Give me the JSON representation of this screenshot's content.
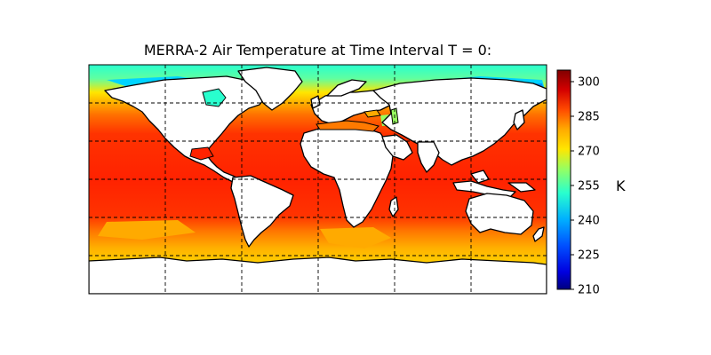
{
  "title": "MERRA-2 Air Temperature at Time Interval T = 0:",
  "colorbar": {
    "unit_label": "K",
    "min": 210,
    "max": 305,
    "ticks": [
      210,
      225,
      240,
      255,
      270,
      285,
      300
    ],
    "colors": [
      "#00007f",
      "#0000c4",
      "#0010ff",
      "#0050ff",
      "#0090ff",
      "#00d4ff",
      "#29ffce",
      "#60ff97",
      "#97ff60",
      "#ceff29",
      "#ffe600",
      "#ffaa00",
      "#ff6f00",
      "#ff3300",
      "#e60000",
      "#b40000",
      "#800000"
    ]
  },
  "map": {
    "projection": "PlateCarree",
    "gridlines": "dashed",
    "lon_range": [
      -180,
      180
    ],
    "lat_range": [
      -90,
      90
    ],
    "land_color": "#ffffff",
    "coastline_color": "#000000"
  },
  "chart_data": {
    "type": "heatmap",
    "title": "MERRA-2 Air Temperature at Time Interval T = 0:",
    "variable": "Air Temperature",
    "unit": "K",
    "zlim": [
      210,
      305
    ],
    "zones": [
      {
        "lat_band": [
          70,
          90
        ],
        "value": 258
      },
      {
        "lat_band": [
          55,
          70
        ],
        "value": 276
      },
      {
        "lat_band": [
          40,
          55
        ],
        "value": 285
      },
      {
        "lat_band": [
          20,
          40
        ],
        "value": 293
      },
      {
        "lat_band": [
          -20,
          20
        ],
        "value": 300
      },
      {
        "lat_band": [
          -40,
          -20
        ],
        "value": 293
      },
      {
        "lat_band": [
          -55,
          -40
        ],
        "value": 282
      },
      {
        "lat_band": [
          -90,
          -55
        ],
        "value": 273
      }
    ]
  }
}
